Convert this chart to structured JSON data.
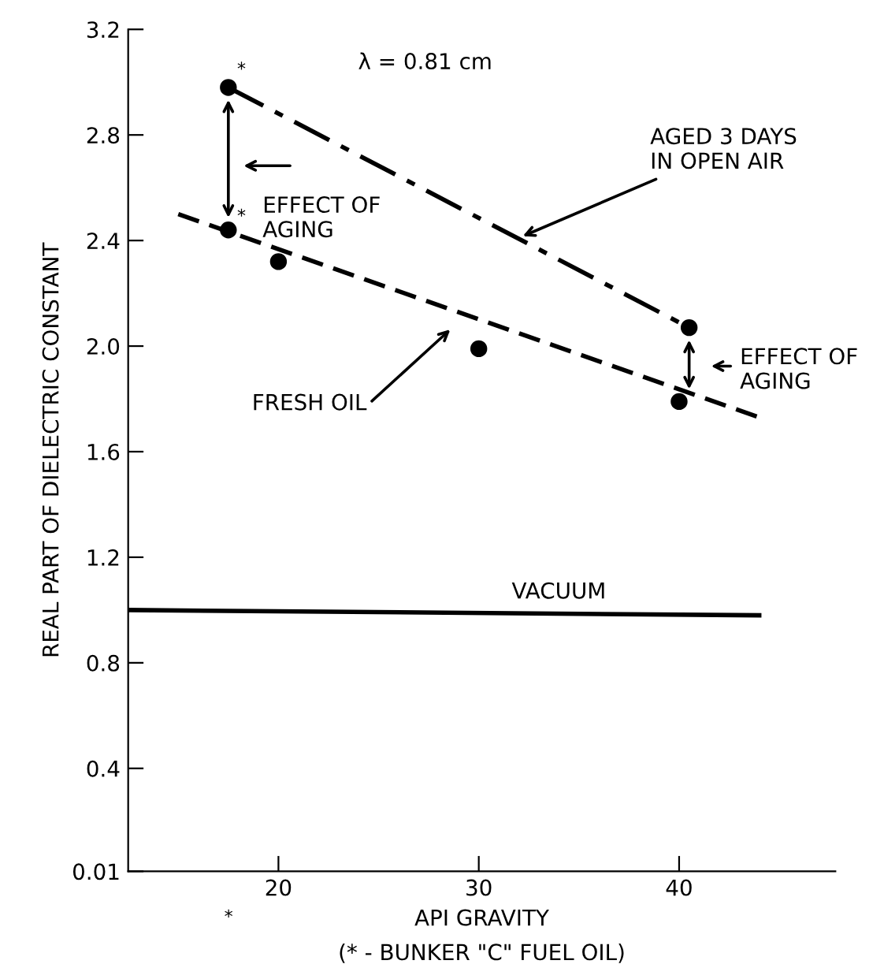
{
  "chart_data": {
    "type": "scatter",
    "xlabel": "API GRAVITY\n(* - BUNKER \"C\" FUEL OIL)",
    "ylabel": "REAL PART OF DIELECTRIC CONSTANT",
    "xlim": [
      12.5,
      47.8
    ],
    "ylim": [
      0.01,
      3.2
    ],
    "xticks": [
      20,
      30,
      40
    ],
    "yticks": [
      0.01,
      0.4,
      0.8,
      1.2,
      1.6,
      {
        "value": 2,
        "label": "2.0"
      },
      2.4,
      2.8,
      3.2
    ],
    "grid": false,
    "legend": false,
    "marker": "circle",
    "series": [
      {
        "color": "#000000",
        "x": [
          17.5,
          40.5
        ],
        "values": [
          2.98,
          2.07
        ]
      },
      {
        "color": "#000000",
        "x": [
          17.5,
          20,
          30,
          40
        ],
        "values": [
          2.44,
          2.32,
          1.99,
          1.79
        ]
      },
      {
        "type": "line",
        "color": "#000000",
        "line_style": "dashdot",
        "marker": "none",
        "x": [
          17.5,
          40.5
        ],
        "values": [
          2.98,
          2.07
        ]
      },
      {
        "type": "line",
        "color": "#000000",
        "line_style": "dashed",
        "marker": "none",
        "x": [
          15,
          44
        ],
        "values": [
          2.5,
          1.73
        ]
      },
      {
        "type": "line",
        "color": "#000000",
        "line_style": "solid",
        "marker": "none",
        "x": [
          12.5,
          44
        ],
        "values": [
          1.0,
          0.98
        ]
      }
    ],
    "annotations": [
      "λ = 0.81 cm",
      {
        "text": "*",
        "x": 17.5,
        "y": 2.98
      },
      {
        "text": "*",
        "x": 17.5,
        "y": 2.44
      },
      "EFFECT OF\nAGING",
      {
        "text": "AGED 3 DAYS\nIN OPEN AIR",
        "x": 32,
        "y": 2.41
      },
      "FRESH OIL",
      "EFFECT OF\nAGING",
      {
        "text": "VACUUM",
        "x": 34,
        "y": 1.0
      },
      "*"
    ]
  }
}
